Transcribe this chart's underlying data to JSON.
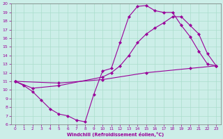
{
  "xlabel": "Windchill (Refroidissement éolien,°C)",
  "xlim": [
    -0.5,
    23.5
  ],
  "ylim": [
    6,
    20
  ],
  "xticks": [
    0,
    1,
    2,
    3,
    4,
    5,
    6,
    7,
    8,
    9,
    10,
    11,
    12,
    13,
    14,
    15,
    16,
    17,
    18,
    19,
    20,
    21,
    22,
    23
  ],
  "yticks": [
    6,
    7,
    8,
    9,
    10,
    11,
    12,
    13,
    14,
    15,
    16,
    17,
    18,
    19,
    20
  ],
  "bg_color": "#cceee8",
  "grid_color": "#aaddcc",
  "line_color": "#990099",
  "curves": [
    {
      "x": [
        0,
        1,
        2,
        3,
        4,
        5,
        6,
        7,
        8,
        9,
        10,
        11,
        12,
        13,
        14,
        15,
        16,
        17,
        18,
        19,
        20,
        21,
        22,
        23
      ],
      "y": [
        11.0,
        10.5,
        9.8,
        8.8,
        7.8,
        7.2,
        7.0,
        6.5,
        6.3,
        9.5,
        12.2,
        12.5,
        15.5,
        18.5,
        19.7,
        19.8,
        19.2,
        19.0,
        19.0,
        17.5,
        16.2,
        14.5,
        13.0,
        12.8
      ]
    },
    {
      "x": [
        0,
        2,
        5,
        10,
        11,
        12,
        13,
        14,
        15,
        16,
        17,
        18,
        19,
        20,
        21,
        22,
        23
      ],
      "y": [
        11.0,
        10.2,
        10.5,
        11.5,
        12.0,
        12.8,
        14.0,
        15.5,
        16.5,
        17.2,
        17.8,
        18.5,
        18.5,
        17.5,
        16.5,
        14.2,
        12.8
      ]
    },
    {
      "x": [
        0,
        5,
        10,
        15,
        20,
        23
      ],
      "y": [
        11.0,
        10.8,
        11.2,
        12.0,
        12.5,
        12.8
      ]
    }
  ]
}
